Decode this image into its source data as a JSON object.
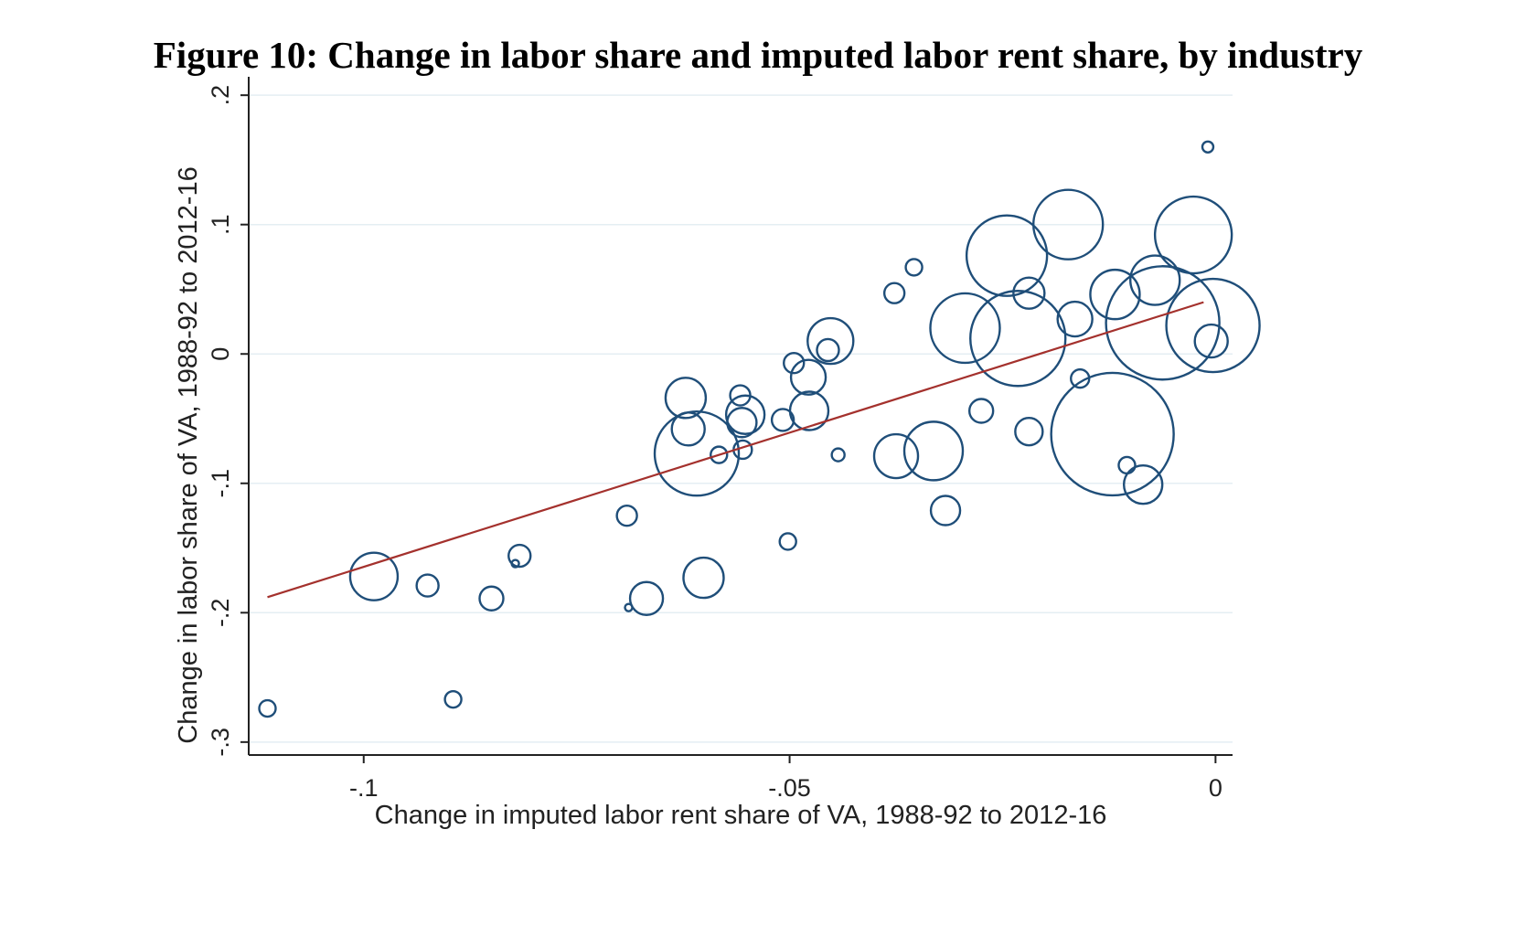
{
  "figure": {
    "title": "Figure 10: Change in labor share and imputed labor rent share, by industry"
  },
  "colors": {
    "marker": "#1f4e79",
    "fit_line": "#a4312d",
    "grid": "#e4eef3",
    "axis": "#222222"
  },
  "chart_data": {
    "type": "scatter",
    "title": "Figure 10: Change in labor share and imputed labor rent share, by industry",
    "xlabel": "Change in imputed labor rent share of VA, 1988-92 to 2012-16",
    "ylabel": "Change in labor share of VA, 1988-92 to 2012-16",
    "xlim": [
      -0.1135,
      0.002
    ],
    "ylim": [
      -0.31,
      0.21
    ],
    "xticks": [
      -0.1,
      -0.05,
      0
    ],
    "xtick_labels": [
      "-.1",
      "-.05",
      "0"
    ],
    "yticks": [
      -0.3,
      -0.2,
      -0.1,
      0,
      0.1,
      0.2
    ],
    "ytick_labels": [
      "-.3",
      "-.2",
      "-.1",
      "0",
      ".1",
      ".2"
    ],
    "grid": "horizontal",
    "marker": "hollow circle, size proportional to industry weight",
    "points": [
      {
        "x": -0.1113,
        "y": -0.274,
        "r": 9
      },
      {
        "x": -0.0988,
        "y": -0.172,
        "r": 26
      },
      {
        "x": -0.0925,
        "y": -0.179,
        "r": 12
      },
      {
        "x": -0.0895,
        "y": -0.267,
        "r": 9
      },
      {
        "x": -0.085,
        "y": -0.189,
        "r": 13
      },
      {
        "x": -0.0822,
        "y": -0.162,
        "r": 4
      },
      {
        "x": -0.0817,
        "y": -0.156,
        "r": 12
      },
      {
        "x": -0.0691,
        "y": -0.125,
        "r": 11
      },
      {
        "x": -0.0689,
        "y": -0.196,
        "r": 4
      },
      {
        "x": -0.0668,
        "y": -0.189,
        "r": 18
      },
      {
        "x": -0.0622,
        "y": -0.034,
        "r": 22
      },
      {
        "x": -0.0619,
        "y": -0.058,
        "r": 18
      },
      {
        "x": -0.0609,
        "y": -0.077,
        "r": 46
      },
      {
        "x": -0.0601,
        "y": -0.173,
        "r": 22
      },
      {
        "x": -0.0583,
        "y": -0.078,
        "r": 9
      },
      {
        "x": -0.0558,
        "y": -0.032,
        "r": 11
      },
      {
        "x": -0.0552,
        "y": -0.047,
        "r": 21
      },
      {
        "x": -0.0556,
        "y": -0.053,
        "r": 16
      },
      {
        "x": -0.0555,
        "y": -0.074,
        "r": 10
      },
      {
        "x": -0.0508,
        "y": -0.051,
        "r": 12
      },
      {
        "x": -0.0502,
        "y": -0.145,
        "r": 9
      },
      {
        "x": -0.0495,
        "y": -0.007,
        "r": 11
      },
      {
        "x": -0.0478,
        "y": -0.018,
        "r": 19
      },
      {
        "x": -0.0477,
        "y": -0.044,
        "r": 21
      },
      {
        "x": -0.0452,
        "y": 0.01,
        "r": 25
      },
      {
        "x": -0.0455,
        "y": 0.003,
        "r": 12
      },
      {
        "x": -0.0443,
        "y": -0.078,
        "r": 7
      },
      {
        "x": -0.0377,
        "y": 0.047,
        "r": 11
      },
      {
        "x": -0.0375,
        "y": -0.079,
        "r": 24
      },
      {
        "x": -0.0354,
        "y": 0.067,
        "r": 9
      },
      {
        "x": -0.0331,
        "y": -0.075,
        "r": 32
      },
      {
        "x": -0.0317,
        "y": -0.121,
        "r": 16
      },
      {
        "x": -0.0294,
        "y": 0.02,
        "r": 38
      },
      {
        "x": -0.0275,
        "y": -0.044,
        "r": 13
      },
      {
        "x": -0.0245,
        "y": 0.076,
        "r": 44
      },
      {
        "x": -0.0232,
        "y": 0.012,
        "r": 52
      },
      {
        "x": -0.0219,
        "y": 0.047,
        "r": 17
      },
      {
        "x": -0.0219,
        "y": -0.06,
        "r": 15
      },
      {
        "x": -0.0173,
        "y": 0.1,
        "r": 38
      },
      {
        "x": -0.0165,
        "y": 0.027,
        "r": 19
      },
      {
        "x": -0.0159,
        "y": -0.019,
        "r": 10
      },
      {
        "x": -0.0121,
        "y": -0.062,
        "r": 67
      },
      {
        "x": -0.0118,
        "y": 0.046,
        "r": 27
      },
      {
        "x": -0.0104,
        "y": -0.086,
        "r": 9
      },
      {
        "x": -0.0085,
        "y": -0.101,
        "r": 21
      },
      {
        "x": -0.0071,
        "y": 0.057,
        "r": 27
      },
      {
        "x": -0.0062,
        "y": 0.024,
        "r": 62
      },
      {
        "x": -0.0026,
        "y": 0.092,
        "r": 42
      },
      {
        "x": -0.0009,
        "y": 0.16,
        "r": 6
      },
      {
        "x": -0.0003,
        "y": 0.022,
        "r": 51
      },
      {
        "x": -0.0005,
        "y": 0.01,
        "r": 18
      }
    ],
    "fit_line": {
      "x": [
        -0.1113,
        -0.0014
      ],
      "y": [
        -0.188,
        0.04
      ]
    }
  }
}
